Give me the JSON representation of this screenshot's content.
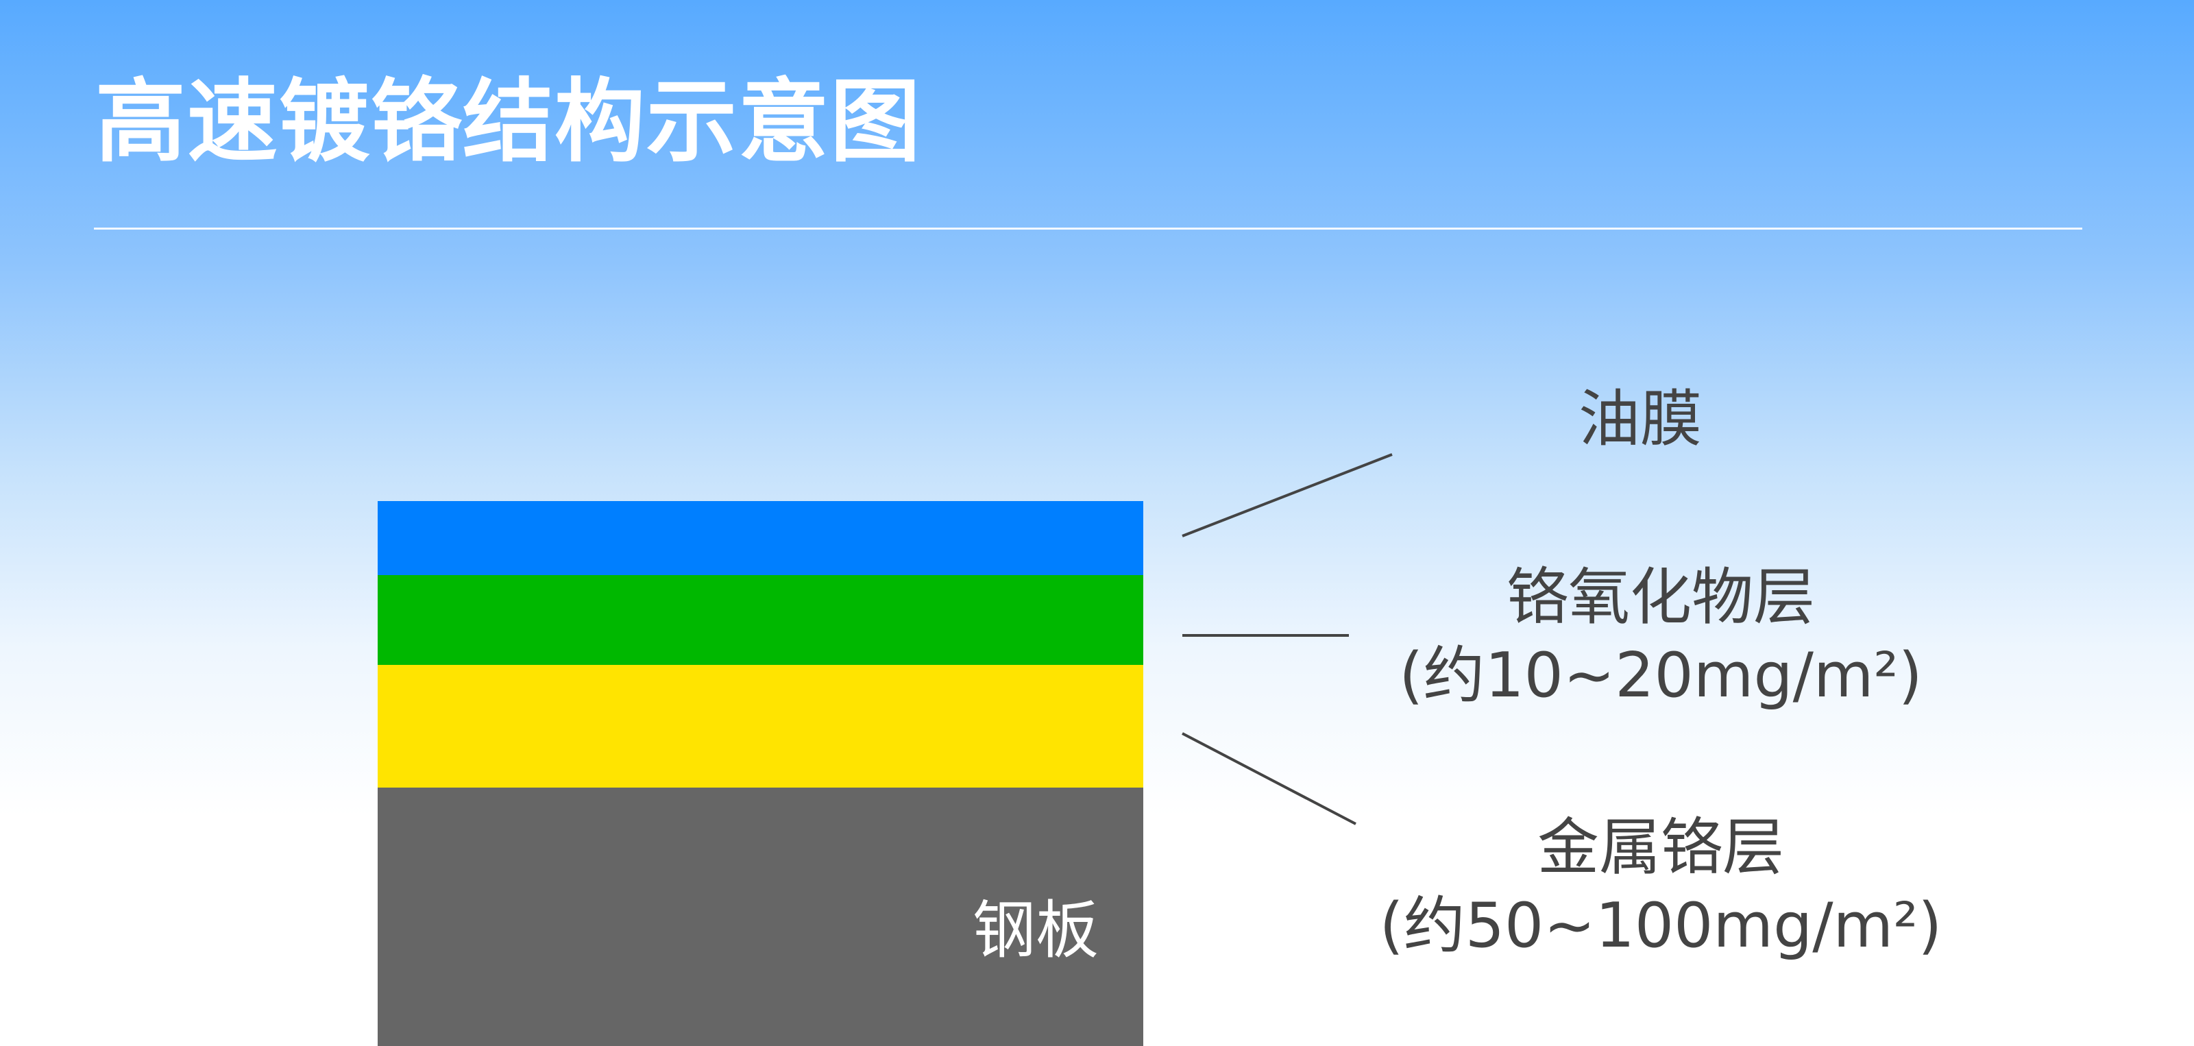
{
  "title": "高速镀铬结构示意图",
  "layers": [
    {
      "name": "油膜",
      "color": "#007fff"
    },
    {
      "name": "铬氧化物层",
      "amount": "(约10~20mg/m²)",
      "color": "#00b800"
    },
    {
      "name": "金属铬层",
      "amount": "(约50~100mg/m²)",
      "color": "#ffe400"
    },
    {
      "name": "钢板",
      "color": "#666666"
    }
  ]
}
